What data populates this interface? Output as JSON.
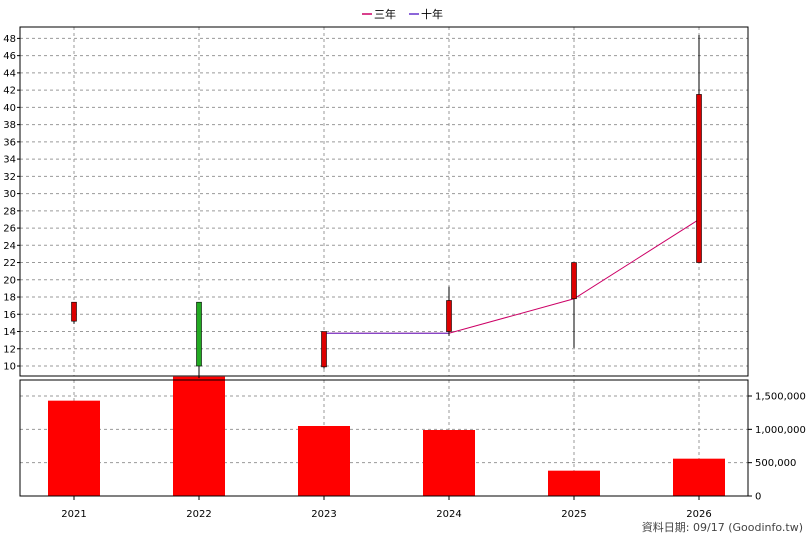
{
  "legend": {
    "items": [
      {
        "label": "三年",
        "color": "#cc0066"
      },
      {
        "label": "十年",
        "color": "#6633cc"
      }
    ]
  },
  "footer": {
    "text": "資料日期: 09/17  (Goodinfo.tw)"
  },
  "colors": {
    "candle_up": "#dd0000",
    "candle_down": "#22aa22",
    "volume_bar": "#ff0000",
    "grid": "#9a9a9a"
  },
  "chart_data": [
    {
      "type": "candlestick",
      "categories": [
        "2021",
        "2022",
        "2023",
        "2024",
        "2025",
        "2026"
      ],
      "ylim": [
        9,
        49
      ],
      "y_ticks": [
        10,
        12,
        14,
        16,
        18,
        20,
        22,
        24,
        26,
        28,
        30,
        32,
        34,
        36,
        38,
        40,
        42,
        44,
        46,
        48
      ],
      "grid": true,
      "legend_position": "top-center",
      "candles": [
        {
          "x": "2021",
          "open": 15.2,
          "close": 17.4,
          "high": 17.4,
          "low": 14.9
        },
        {
          "x": "2022",
          "open": 17.4,
          "close": 10.0,
          "high": 17.4,
          "low": 8.6
        },
        {
          "x": "2023",
          "open": 9.9,
          "close": 14.0,
          "high": 14.0,
          "low": 9.7
        },
        {
          "x": "2024",
          "open": 14.0,
          "close": 17.6,
          "high": 19.2,
          "low": 13.5
        },
        {
          "x": "2025",
          "open": 17.8,
          "close": 22.0,
          "high": 22.0,
          "low": 12.1
        },
        {
          "x": "2026",
          "open": 22.0,
          "close": 41.5,
          "high": 48.4,
          "low": 22.0
        }
      ],
      "series": [
        {
          "name": "三年",
          "x": [
            "2023",
            "2024",
            "2025",
            "2026"
          ],
          "values": [
            13.8,
            13.8,
            17.8,
            27.0
          ]
        },
        {
          "name": "十年",
          "x": [
            "2023",
            "2024"
          ],
          "values": [
            13.8,
            13.8
          ]
        }
      ]
    },
    {
      "type": "bar",
      "categories": [
        "2021",
        "2022",
        "2023",
        "2024",
        "2025",
        "2026"
      ],
      "values": [
        1430000,
        1790000,
        1050000,
        990000,
        380000,
        560000
      ],
      "ylim": [
        0,
        1700000
      ],
      "y_ticks": [
        0,
        500000,
        1000000,
        1500000
      ],
      "y_tick_labels": [
        "0",
        "500,000",
        "1,000,000",
        "1,500,000"
      ],
      "grid": true
    }
  ]
}
